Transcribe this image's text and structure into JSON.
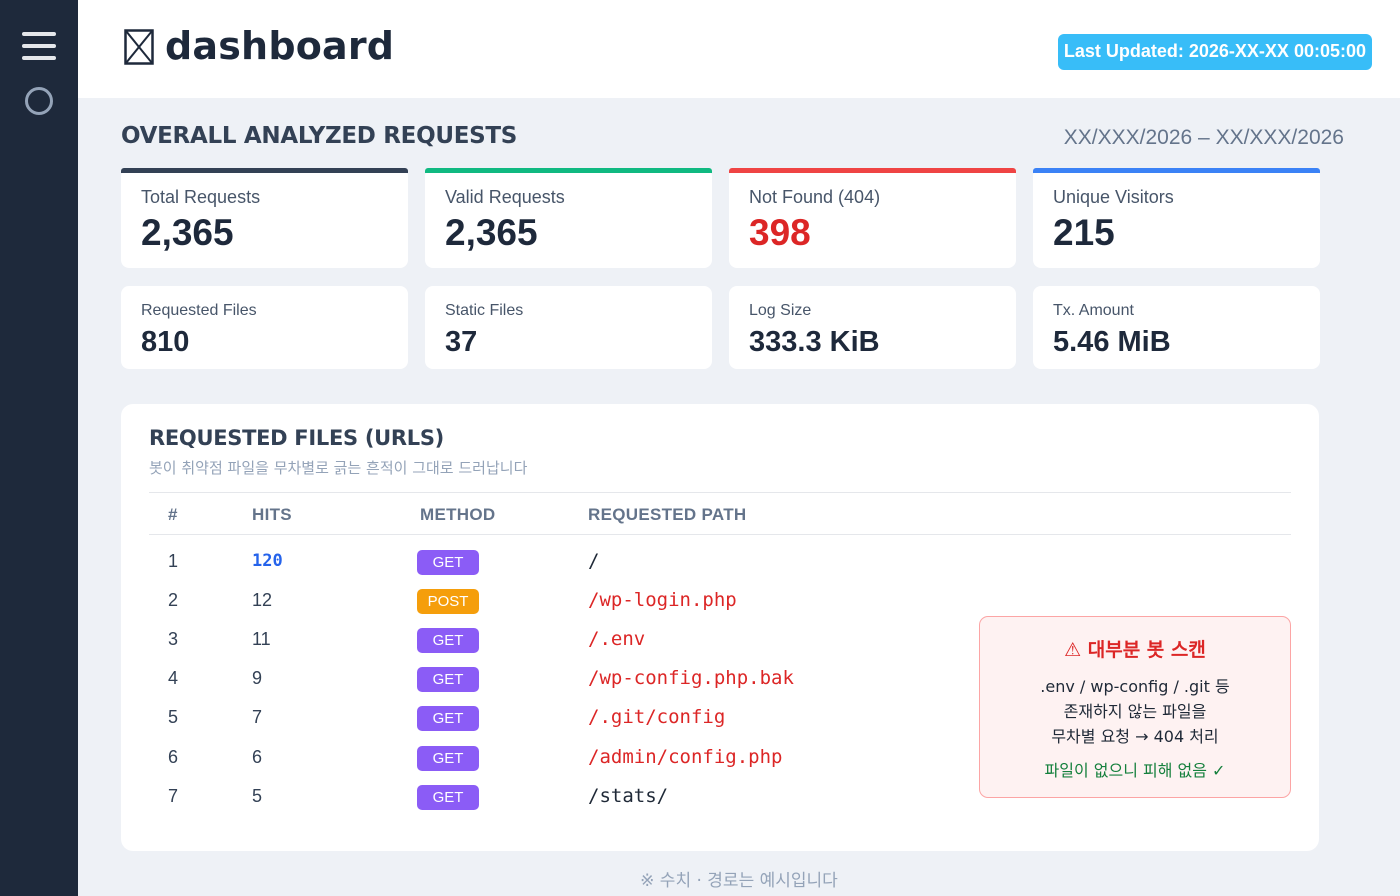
{
  "sidebar": {
    "menu_icon": "hamburger-icon",
    "status_icon": "circle-icon"
  },
  "header": {
    "logo_icon": "crossed-box-icon",
    "title": "dashboard",
    "last_updated": "Last Updated: 2026-XX-XX 00:05:00"
  },
  "overview": {
    "title": "OVERALL ANALYZED REQUESTS",
    "date_range": "XX/XXX/2026 – XX/XXX/2026",
    "top_cards": [
      {
        "label": "Total Requests",
        "value": "2,365",
        "accent": "#334155"
      },
      {
        "label": "Valid Requests",
        "value": "2,365",
        "accent": "#10b981"
      },
      {
        "label": "Not Found (404)",
        "value": "398",
        "accent": "#ef4444"
      },
      {
        "label": "Unique Visitors",
        "value": "215",
        "accent": "#3b82f6"
      }
    ],
    "bottom_cards": [
      {
        "label": "Requested Files",
        "value": "810"
      },
      {
        "label": "Static Files",
        "value": "37"
      },
      {
        "label": "Log Size",
        "value": "333.3 KiB"
      },
      {
        "label": "Tx. Amount",
        "value": "5.46 MiB"
      }
    ]
  },
  "files": {
    "title": "REQUESTED FILES (URLS)",
    "subtitle": "봇이 취약점 파일을 무차별로 긁는 흔적이 그대로 드러납니다",
    "columns": [
      "#",
      "HITS",
      "METHOD",
      "REQUESTED PATH"
    ],
    "rows": [
      {
        "n": "1",
        "hits": "120",
        "method": "GET",
        "path": "/"
      },
      {
        "n": "2",
        "hits": "12",
        "method": "POST",
        "path": "/wp-login.php"
      },
      {
        "n": "3",
        "hits": "11",
        "method": "GET",
        "path": "/.env"
      },
      {
        "n": "4",
        "hits": "9",
        "method": "GET",
        "path": "/wp-config.php.bak"
      },
      {
        "n": "5",
        "hits": "7",
        "method": "GET",
        "path": "/.git/config"
      },
      {
        "n": "6",
        "hits": "6",
        "method": "GET",
        "path": "/admin/config.php"
      },
      {
        "n": "7",
        "hits": "5",
        "method": "GET",
        "path": "/stats/"
      }
    ]
  },
  "alert": {
    "title": "⚠ 대부분 봇 스캔",
    "line1": ".env / wp-config / .git 등",
    "line2": "존재하지 않는 파일을",
    "line3": "무차별 요청 → 404 처리",
    "ok": "파일이 없으니 피해 없음 ✓"
  },
  "footnote": "※ 수치 · 경로는 예시입니다"
}
